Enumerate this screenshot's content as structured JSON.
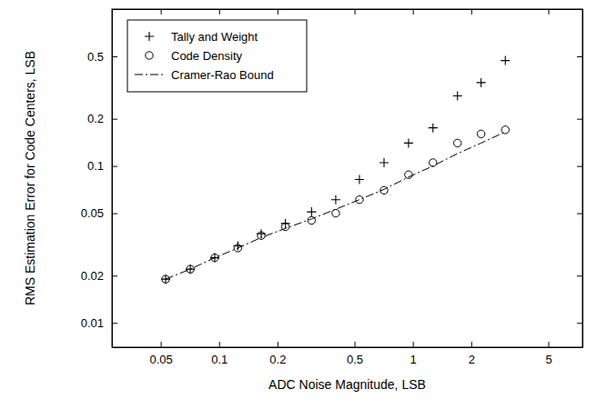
{
  "chart_data": {
    "type": "scatter",
    "x_label": "ADC Noise Magnitude, LSB",
    "y_label": "RMS Estimation Error for Code Centers, LSB",
    "log": true,
    "grid": false,
    "legend": "top-left",
    "x": [
      0.053,
      0.071,
      0.095,
      0.125,
      0.165,
      0.22,
      0.3,
      0.4,
      0.53,
      0.71,
      0.95,
      1.27,
      1.7,
      2.25,
      3.0
    ],
    "series": [
      {
        "name": "Tally and Weight",
        "type": "scatter",
        "marker": "plus",
        "color": "#000000",
        "values": [
          0.019,
          0.022,
          0.026,
          0.031,
          0.037,
          0.043,
          0.051,
          0.061,
          0.082,
          0.105,
          0.14,
          0.175,
          0.28,
          0.34,
          0.47
        ]
      },
      {
        "name": "Code Density",
        "type": "scatter",
        "marker": "circle",
        "color": "#000000",
        "values": [
          0.019,
          0.022,
          0.026,
          0.03,
          0.036,
          0.041,
          0.045,
          0.05,
          0.061,
          0.07,
          0.088,
          0.105,
          0.14,
          0.16,
          0.17
        ]
      },
      {
        "name": "Cramer-Rao Bound",
        "type": "line",
        "line_style": "dashdot",
        "color": "#000000",
        "values": [
          0.019,
          0.022,
          0.026,
          0.03,
          0.035,
          0.04,
          0.046,
          0.053,
          0.061,
          0.071,
          0.085,
          0.1,
          0.12,
          0.14,
          0.165
        ]
      }
    ],
    "xlim": [
      0.028,
      7.5
    ],
    "xticks": [
      0.05,
      0.1,
      0.2,
      0.5,
      1,
      2,
      5
    ],
    "ylim": [
      0.007,
      1
    ],
    "yticks": [
      0.01,
      0.02,
      0.05,
      0.1,
      0.2,
      0.5
    ]
  }
}
